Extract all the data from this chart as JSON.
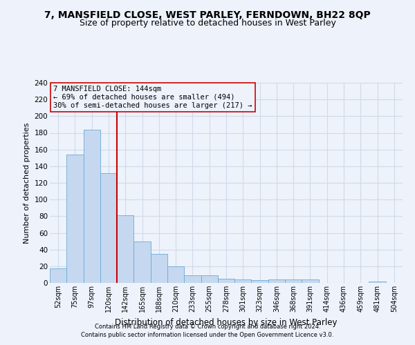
{
  "title1": "7, MANSFIELD CLOSE, WEST PARLEY, FERNDOWN, BH22 8QP",
  "title2": "Size of property relative to detached houses in West Parley",
  "xlabel": "Distribution of detached houses by size in West Parley",
  "ylabel": "Number of detached properties",
  "footer1": "Contains HM Land Registry data © Crown copyright and database right 2024.",
  "footer2": "Contains public sector information licensed under the Open Government Licence v3.0.",
  "annotation_line1": "7 MANSFIELD CLOSE: 144sqm",
  "annotation_line2": "← 69% of detached houses are smaller (494)",
  "annotation_line3": "30% of semi-detached houses are larger (217) →",
  "bar_color": "#c5d8f0",
  "bar_edge_color": "#6aaad4",
  "vline_color": "#cc0000",
  "categories": [
    "52sqm",
    "75sqm",
    "97sqm",
    "120sqm",
    "142sqm",
    "165sqm",
    "188sqm",
    "210sqm",
    "233sqm",
    "255sqm",
    "278sqm",
    "301sqm",
    "323sqm",
    "346sqm",
    "368sqm",
    "391sqm",
    "414sqm",
    "436sqm",
    "459sqm",
    "481sqm",
    "504sqm"
  ],
  "values": [
    17,
    154,
    184,
    132,
    81,
    50,
    35,
    20,
    9,
    9,
    5,
    4,
    3,
    4,
    4,
    4,
    0,
    0,
    0,
    2,
    0
  ],
  "vline_position": 4.5,
  "ylim": [
    0,
    240
  ],
  "yticks": [
    0,
    20,
    40,
    60,
    80,
    100,
    120,
    140,
    160,
    180,
    200,
    220,
    240
  ],
  "bg_color": "#edf2fb",
  "grid_color": "#d0daea",
  "title1_fontsize": 10,
  "title2_fontsize": 9,
  "annotation_fontsize": 7.5,
  "footer_fontsize": 6.0
}
